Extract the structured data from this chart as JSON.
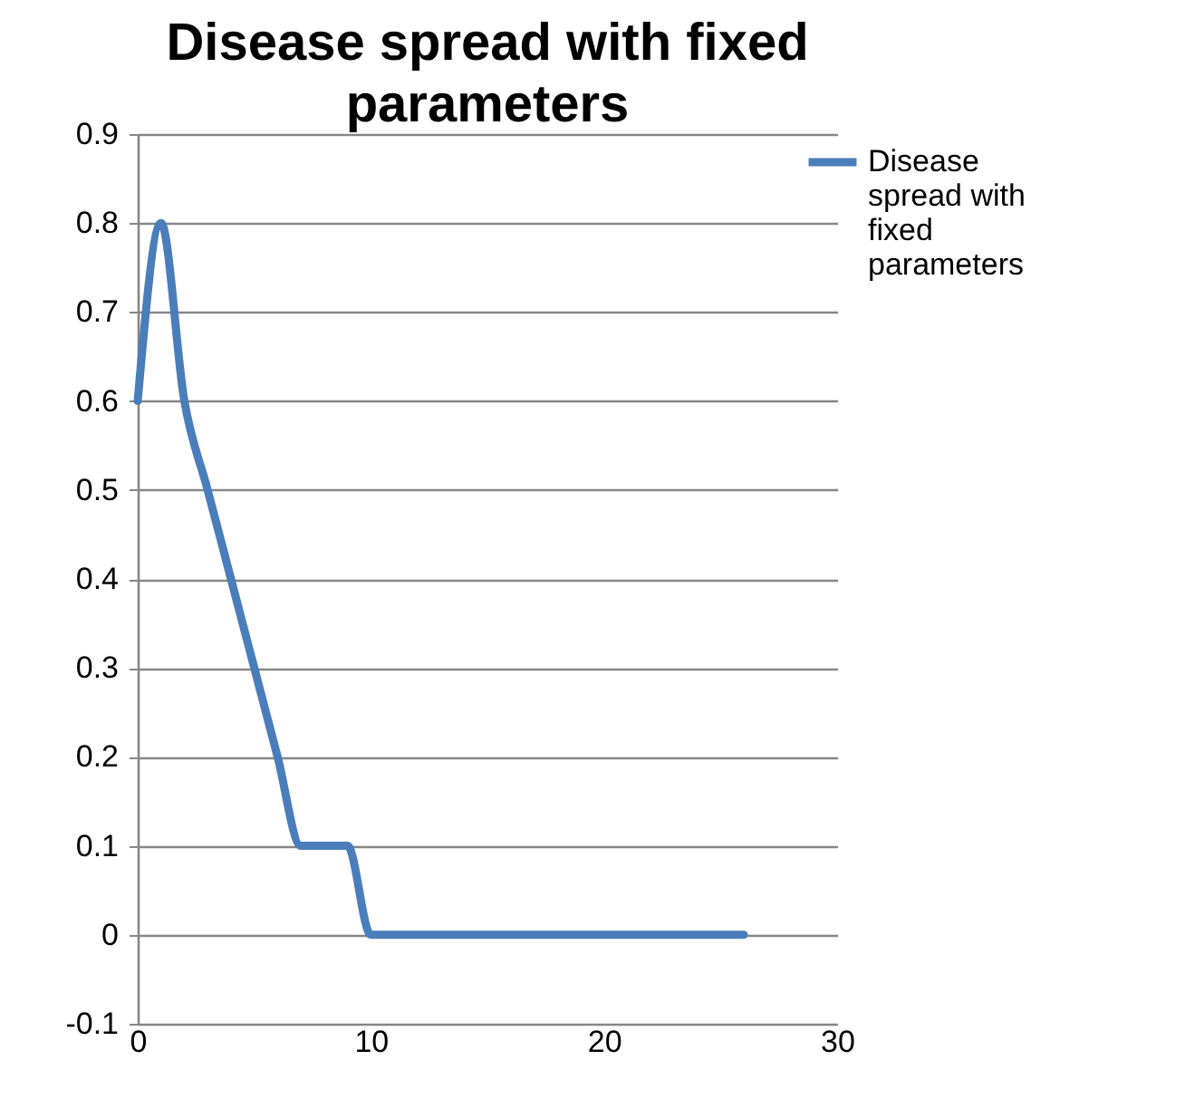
{
  "chart_data": {
    "type": "line",
    "title": "Disease spread with fixed parameters",
    "x": [
      0,
      1,
      2,
      3,
      4,
      5,
      6,
      7,
      8,
      9,
      10,
      11,
      12,
      13,
      14,
      15,
      16,
      17,
      18,
      19,
      20,
      21,
      22,
      23,
      24,
      25,
      26
    ],
    "series": [
      {
        "name": "Disease spread with fixed parameters",
        "color": "#4a7ebb",
        "values": [
          0.6,
          0.8,
          0.6,
          0.5,
          0.4,
          0.3,
          0.2,
          0.1,
          0.1,
          0.1,
          0,
          0,
          0,
          0,
          0,
          0,
          0,
          0,
          0,
          0,
          0,
          0,
          0,
          0,
          0,
          0,
          0
        ]
      }
    ],
    "xlim": [
      0,
      30
    ],
    "xticks": [
      0,
      10,
      20,
      30
    ],
    "ylim": [
      -0.1,
      0.9
    ],
    "yticks": [
      -0.1,
      0,
      0.1,
      0.2,
      0.3,
      0.4,
      0.5,
      0.6,
      0.7,
      0.8,
      0.9
    ],
    "grid": "y",
    "legend": "right",
    "marker": "none",
    "line_style": "solid"
  }
}
